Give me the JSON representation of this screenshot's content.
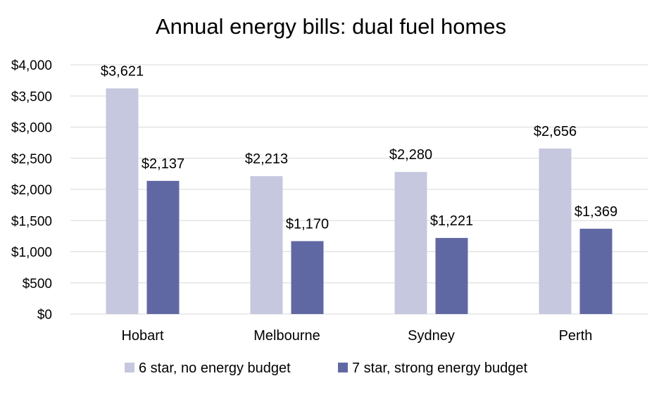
{
  "chart_data": {
    "type": "bar",
    "title": "Annual energy bills: dual fuel homes",
    "xlabel": "",
    "ylabel": "",
    "categories": [
      "Hobart",
      "Melbourne",
      "Sydney",
      "Perth"
    ],
    "series": [
      {
        "name": "6 star, no energy budget",
        "values": [
          3621,
          2213,
          2280,
          2656
        ],
        "labels": [
          "$3,621",
          "$2,213",
          "$2,280",
          "$2,656"
        ],
        "color": "#c5c8de"
      },
      {
        "name": "7 star, strong energy budget",
        "values": [
          2137,
          1170,
          1221,
          1369
        ],
        "labels": [
          "$2,137",
          "$1,170",
          "$1,221",
          "$1,369"
        ],
        "color": "#6068a4"
      }
    ],
    "ylim": [
      0,
      4000
    ],
    "yticks": [
      0,
      500,
      1000,
      1500,
      2000,
      2500,
      3000,
      3500,
      4000
    ],
    "ytick_labels": [
      "$0",
      "$500",
      "$1,000",
      "$1,500",
      "$2,000",
      "$2,500",
      "$3,000",
      "$3,500",
      "$4,000"
    ],
    "grid": true,
    "legend_position": "bottom"
  }
}
